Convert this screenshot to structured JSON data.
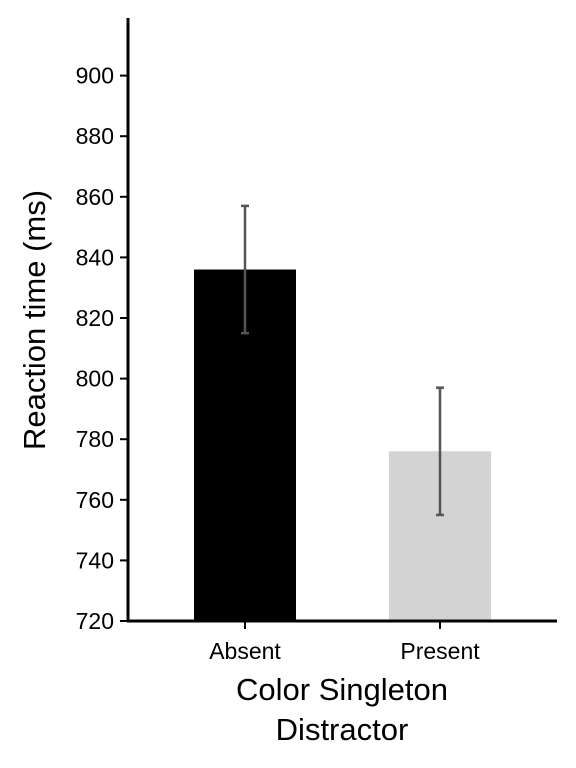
{
  "chart_data": {
    "type": "bar",
    "title": "",
    "xlabel": [
      "Color Singleton",
      "Distractor"
    ],
    "ylabel": "Reaction time (ms)",
    "categories": [
      "Absent",
      "Present"
    ],
    "values": [
      836,
      776
    ],
    "error_bars": [
      {
        "low": 815,
        "high": 857
      },
      {
        "low": 755,
        "high": 797
      }
    ],
    "bar_colors": [
      "#000000",
      "#d3d3d3"
    ],
    "ylim": [
      720,
      918
    ],
    "yticks": [
      720,
      740,
      760,
      780,
      800,
      820,
      840,
      860,
      880,
      900
    ],
    "grid": false,
    "legend": "none"
  }
}
